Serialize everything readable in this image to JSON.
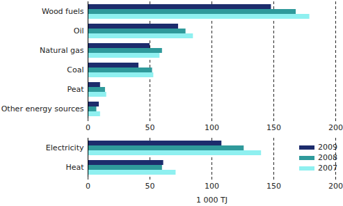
{
  "chart_data": {
    "type": "bar",
    "orientation": "horizontal",
    "categories": [
      "Wood fuels",
      "Oil",
      "Natural gas",
      "Coal",
      "Peat",
      "Other energy sources",
      null,
      "Electricity",
      "Heat"
    ],
    "series": [
      {
        "name": "2009",
        "color": "#1c2c6c",
        "values": [
          148,
          73,
          50,
          41,
          10,
          9,
          null,
          108,
          61
        ]
      },
      {
        "name": "2008",
        "color": "#2f9a9b",
        "values": [
          168,
          79,
          60,
          52,
          14,
          7,
          null,
          126,
          60
        ]
      },
      {
        "name": "2007",
        "color": "#8ff0f0",
        "values": [
          179,
          85,
          58,
          53,
          15,
          10,
          null,
          140,
          71
        ]
      }
    ],
    "xlabel": "1 000 TJ",
    "xlim": [
      0,
      200
    ],
    "xticks": [
      0,
      50,
      100,
      150,
      200
    ],
    "grid": true,
    "legend": "lower right"
  }
}
